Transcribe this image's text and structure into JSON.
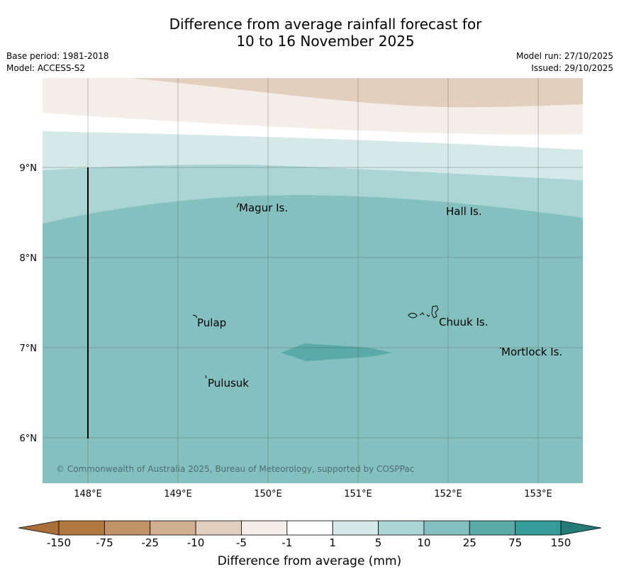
{
  "title": {
    "line1": "Difference from average rainfall forecast for",
    "line2": "10 to 16 November 2025"
  },
  "meta": {
    "base_period": "Base period: 1981-2018",
    "model": "Model: ACCESS-S2",
    "model_run": "Model run: 27/10/2025",
    "issued": "Issued: 29/10/2025"
  },
  "map": {
    "lon_labels": [
      "148°E",
      "149°E",
      "150°E",
      "151°E",
      "152°E",
      "153°E"
    ],
    "lat_labels": [
      "9°N",
      "8°N",
      "7°N",
      "6°N"
    ],
    "places": [
      "Magur Is.",
      "Hall Is.",
      "Pulap",
      "Chuuk Is.",
      "Mortlock Is.",
      "Pulusuk"
    ],
    "copyright": "© Commonwealth of Australia 2025, Bureau of Meteorology, supported by COSPPac"
  },
  "colorbar": {
    "ticks": [
      "-150",
      "-75",
      "-25",
      "-10",
      "-5",
      "-1",
      "1",
      "5",
      "10",
      "25",
      "75",
      "150"
    ],
    "colors": [
      "#a87038",
      "#b1773d",
      "#c19168",
      "#d1ae8f",
      "#e2cfbe",
      "#f5ede8",
      "#ffffff",
      "#d4e9e8",
      "#aad5d4",
      "#84c0bf",
      "#59aba9",
      "#349b97",
      "#267b78"
    ],
    "title": "Difference from average (mm)"
  }
}
